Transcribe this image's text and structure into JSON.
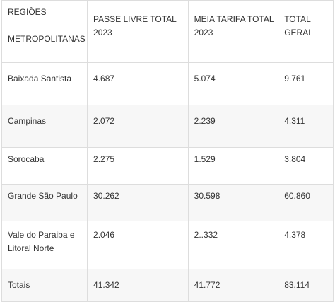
{
  "table": {
    "headers": {
      "region_line1": "REGIÕES",
      "region_line2": "METROPOLITANAS",
      "passe_livre": "PASSE  LIVRE TOTAL 2023",
      "meia_tarifa": "MEIA TARIFA TOTAL 2023",
      "total_geral": "TOTAL GERAL"
    },
    "rows": [
      {
        "region": "Baixada Santista",
        "passe_livre": "4.687",
        "meia_tarifa": "5.074",
        "total": "9.761"
      },
      {
        "region": "Campinas",
        "passe_livre": "2.072",
        "meia_tarifa": "2.239",
        "total": "4.311"
      },
      {
        "region": "Sorocaba",
        "passe_livre": "2.275",
        "meia_tarifa": "1.529",
        "total": "3.804"
      },
      {
        "region": "Grande São Paulo",
        "passe_livre": "30.262",
        "meia_tarifa": "30.598",
        "total": "60.860"
      },
      {
        "region": "Vale do Paraiba e Litoral Norte",
        "passe_livre": "2.046",
        "meia_tarifa": "2..332",
        "total": "4.378"
      },
      {
        "region": "Totais",
        "passe_livre": "41.342",
        "meia_tarifa": "41.772",
        "total": "83.114"
      }
    ]
  }
}
